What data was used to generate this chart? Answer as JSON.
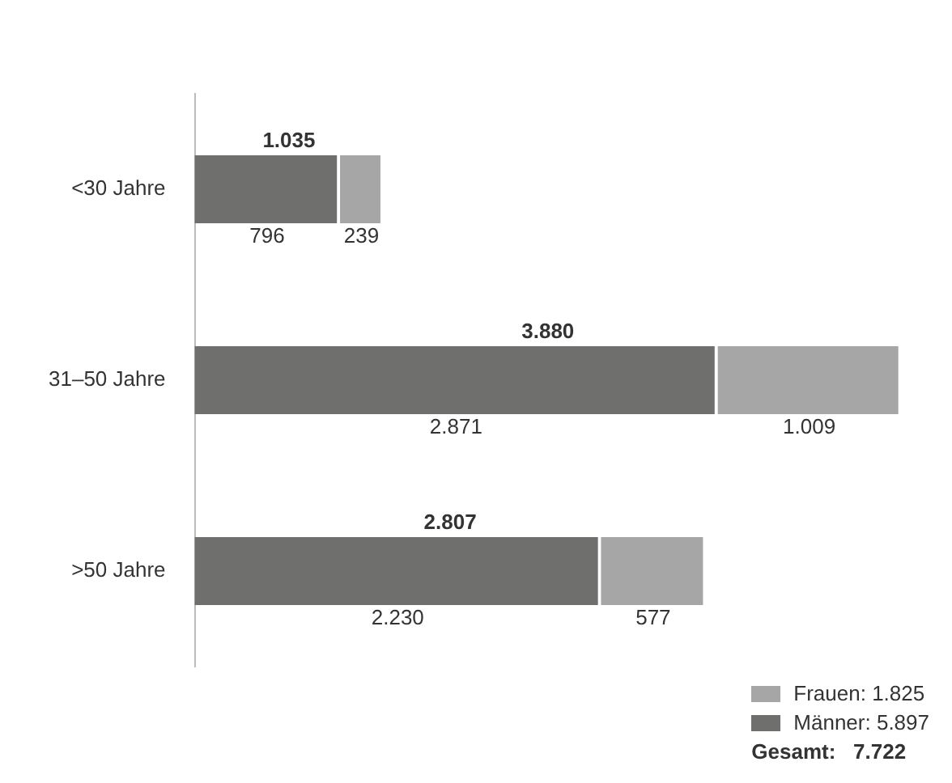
{
  "chart_data": {
    "type": "bar",
    "orientation": "horizontal",
    "stacked": true,
    "categories": [
      "<30 Jahre",
      "31–50 Jahre",
      ">50 Jahre"
    ],
    "series": [
      {
        "name": "Männer: 5.897",
        "color": "#6f6f6d",
        "values": [
          796,
          2871,
          2230
        ],
        "value_labels": [
          "796",
          "2.871",
          "2.230"
        ]
      },
      {
        "name": "Frauen: 1.825",
        "color": "#a6a6a6",
        "values": [
          239,
          1009,
          577
        ],
        "value_labels": [
          "239",
          "1.009",
          "577"
        ]
      }
    ],
    "totals": [
      "1.035",
      "3.880",
      "2.807"
    ],
    "legend": "bottom right",
    "annotations": [
      "Gesamt:   7.722"
    ]
  }
}
